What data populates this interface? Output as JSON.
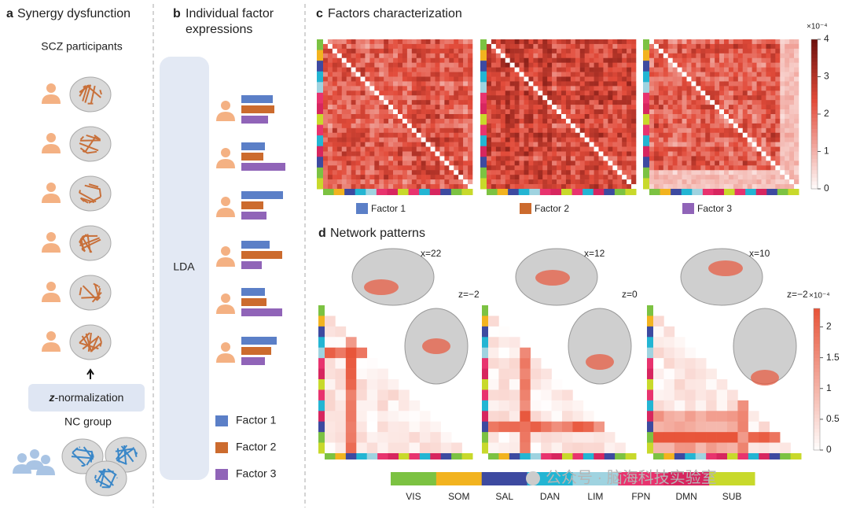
{
  "panel_a": {
    "label": "a",
    "title": "Synergy dysfunction",
    "group_top": "SCZ participants",
    "norm_prefix": "z",
    "norm_text": "-normalization",
    "group_bottom": "NC group"
  },
  "panel_b": {
    "label": "b",
    "title_lines": [
      "Individual factor",
      "expressions"
    ],
    "method": "LDA",
    "participants": [
      [
        40,
        42,
        34
      ],
      [
        30,
        28,
        56
      ],
      [
        53,
        28,
        32
      ],
      [
        36,
        52,
        26
      ],
      [
        30,
        32,
        52
      ],
      [
        45,
        38,
        30
      ]
    ]
  },
  "factors": [
    {
      "name": "Factor 1",
      "color": "#5b7fc7"
    },
    {
      "name": "Factor 2",
      "color": "#cc6b2e"
    },
    {
      "name": "Factor 3",
      "color": "#9064b8"
    }
  ],
  "panel_c": {
    "label": "c",
    "title": "Factors characterization",
    "colorbar": {
      "exponent": "×10⁻⁴",
      "lim": [
        0,
        4
      ],
      "ticks": [
        0,
        1,
        2,
        3,
        4
      ]
    }
  },
  "panel_d": {
    "label": "d",
    "title": "Network patterns",
    "views": [
      {
        "x": "x=22",
        "z": "z=−2"
      },
      {
        "x": "x=12",
        "z": "z=0"
      },
      {
        "x": "x=10",
        "z": "z=−2"
      }
    ],
    "colorbar": {
      "exponent": "×10⁻⁴",
      "lim": [
        0,
        2.3
      ],
      "ticks": [
        0,
        0.5,
        1,
        1.5,
        2
      ]
    }
  },
  "networks": [
    {
      "name": "VIS",
      "color": "#7cc242"
    },
    {
      "name": "SOM",
      "color": "#f2b31f"
    },
    {
      "name": "SAL",
      "color": "#3d4aa0"
    },
    {
      "name": "DAN",
      "color": "#23b5d3"
    },
    {
      "name": "LIM",
      "color": "#9fd3e0"
    },
    {
      "name": "FPN",
      "color": "#e8336e"
    },
    {
      "name": "DMN",
      "color": "#d7265f"
    },
    {
      "name": "SUB",
      "color": "#c8d92b"
    }
  ],
  "watermark": "公众号 · 脑海科技实验室"
}
